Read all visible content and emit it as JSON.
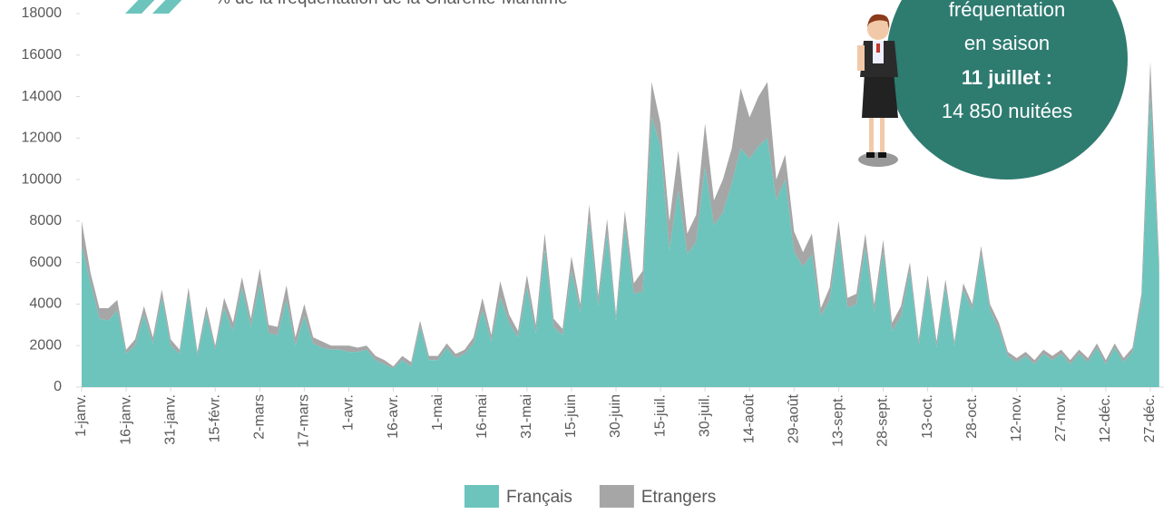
{
  "chart_data": {
    "type": "area",
    "stacked": true,
    "title": "% de la fréquentation de la Charente-Maritime",
    "annotation": [
      "fréquentation",
      "en saison",
      "11 juillet :",
      "14 850 nuitées"
    ],
    "legend": "bottom",
    "ylim": [
      0,
      18000
    ],
    "yticks": [
      0,
      2000,
      4000,
      6000,
      8000,
      10000,
      12000,
      14000,
      16000,
      18000
    ],
    "categories": [
      "1-janv.",
      null,
      null,
      null,
      null,
      "16-janv.",
      null,
      null,
      null,
      null,
      "31-janv.",
      null,
      null,
      null,
      null,
      "15-févr.",
      null,
      null,
      null,
      null,
      "2-mars",
      null,
      null,
      null,
      null,
      "17-mars",
      null,
      null,
      null,
      null,
      "1-avr.",
      null,
      null,
      null,
      null,
      "16-avr.",
      null,
      null,
      null,
      null,
      "1-mai",
      null,
      null,
      null,
      null,
      "16-mai",
      null,
      null,
      null,
      null,
      "31-mai",
      null,
      null,
      null,
      null,
      "15-juin",
      null,
      null,
      null,
      null,
      "30-juin",
      null,
      null,
      null,
      null,
      "15-juil.",
      null,
      null,
      null,
      null,
      "30-juil.",
      null,
      null,
      null,
      null,
      "14-août",
      null,
      null,
      null,
      null,
      "29-août",
      null,
      null,
      null,
      null,
      "13-sept.",
      null,
      null,
      null,
      null,
      "28-sept.",
      null,
      null,
      null,
      null,
      "13-oct.",
      null,
      null,
      null,
      null,
      "28-oct.",
      null,
      null,
      null,
      null,
      "12-nov.",
      null,
      null,
      null,
      null,
      "27-nov.",
      null,
      null,
      null,
      null,
      "12-déc.",
      null,
      null,
      null,
      null,
      "27-déc.",
      null
    ],
    "series": [
      {
        "name": "Français",
        "color": "#6cc4bc",
        "values": [
          6800,
          5000,
          3300,
          3200,
          3700,
          1600,
          2000,
          3500,
          2100,
          4300,
          2000,
          1600,
          4400,
          1500,
          3500,
          1800,
          3800,
          2700,
          4800,
          2900,
          5000,
          2600,
          2500,
          4200,
          2000,
          3400,
          2100,
          1900,
          1800,
          1800,
          1700,
          1700,
          1800,
          1300,
          1100,
          900,
          1300,
          1000,
          2900,
          1300,
          1300,
          1900,
          1400,
          1600,
          2100,
          3700,
          2200,
          4300,
          3100,
          2400,
          4800,
          2600,
          6600,
          2900,
          2500,
          5600,
          3600,
          8000,
          3900,
          7400,
          3200,
          7700,
          4500,
          4600,
          13000,
          11600,
          6600,
          9500,
          6400,
          7000,
          10600,
          7800,
          8400,
          9800,
          11500,
          11000,
          11600,
          12000,
          9000,
          10000,
          6500,
          5800,
          6400,
          3400,
          4200,
          7300,
          3800,
          4000,
          6700,
          3600,
          6500,
          2700,
          3400,
          5600,
          2000,
          5000,
          1900,
          4800,
          2000,
          4700,
          3700,
          6400,
          3700,
          2800,
          1500,
          1200,
          1500,
          1100,
          1600,
          1300,
          1600,
          1100,
          1600,
          1200,
          1900,
          1100,
          1900,
          1200,
          1700,
          4000,
          14000,
          5500
        ]
      },
      {
        "name": "Etrangers",
        "color": "#a6a6a6",
        "values": [
          1200,
          500,
          500,
          600,
          500,
          200,
          300,
          400,
          300,
          400,
          300,
          200,
          400,
          200,
          400,
          200,
          500,
          400,
          500,
          400,
          700,
          400,
          400,
          700,
          400,
          600,
          300,
          300,
          200,
          200,
          300,
          200,
          200,
          200,
          200,
          100,
          200,
          200,
          300,
          200,
          200,
          200,
          200,
          200,
          300,
          600,
          300,
          800,
          400,
          300,
          600,
          400,
          800,
          400,
          300,
          700,
          400,
          800,
          500,
          700,
          300,
          800,
          500,
          1000,
          1700,
          1100,
          1400,
          1900,
          1000,
          1300,
          2100,
          1200,
          1600,
          1700,
          2900,
          2000,
          2400,
          2700,
          1000,
          1200,
          1000,
          700,
          1000,
          400,
          600,
          700,
          500,
          500,
          700,
          400,
          600,
          400,
          500,
          400,
          300,
          400,
          300,
          400,
          200,
          300,
          300,
          400,
          300,
          300,
          200,
          200,
          200,
          200,
          200,
          200,
          200,
          200,
          200,
          200,
          200,
          200,
          200,
          200,
          200,
          500,
          1700,
          500
        ]
      }
    ]
  }
}
